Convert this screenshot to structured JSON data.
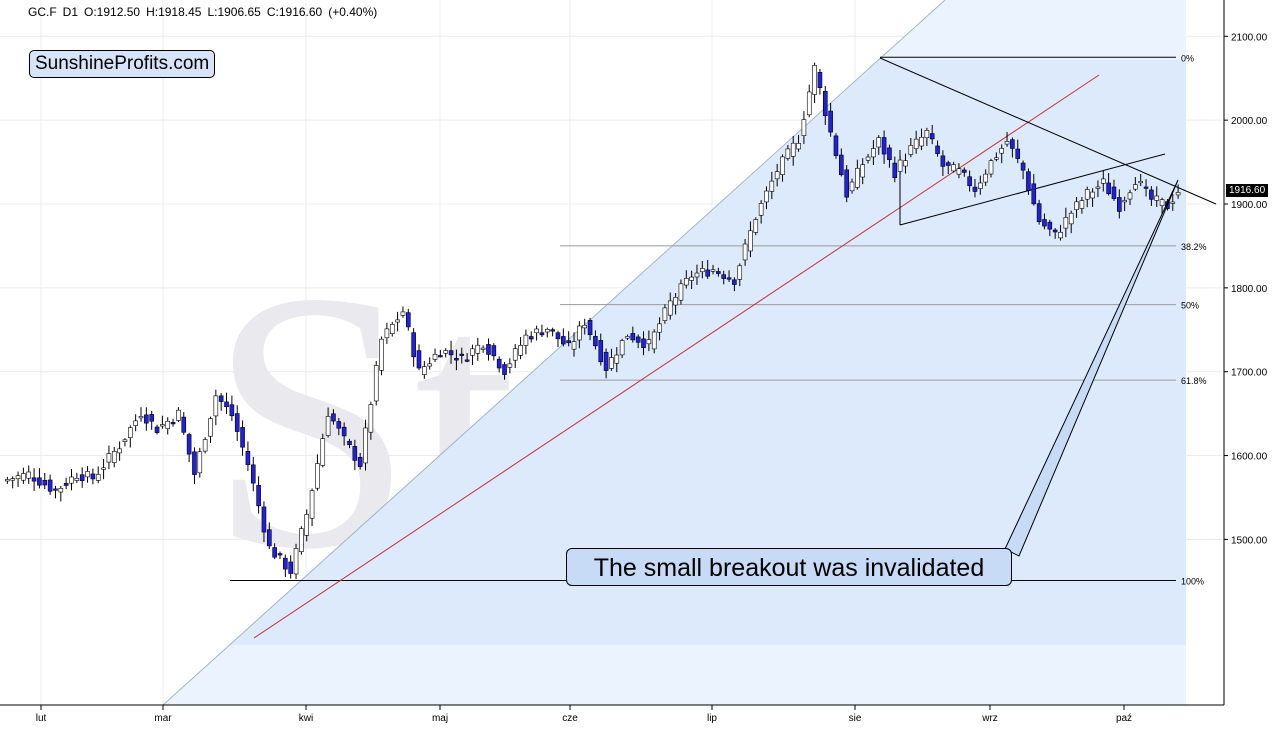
{
  "header": {
    "symbol": "GC.F",
    "interval": "D1",
    "open": "O:1912.50",
    "high": "H:1918.45",
    "low": "L:1906.65",
    "close": "C:1916.60",
    "change": "(+0.40%)"
  },
  "brand": "SunshineProfits.com",
  "watermark": "Stooq",
  "callout": "The small breakout was invalidated",
  "last_price": "1916.60",
  "colors": {
    "up_body": "#ffffff",
    "down_body": "#2020e0",
    "wick": "#000000",
    "trend_red": "#c4323a",
    "band_fill": "#ddeafc",
    "callout_fill": "#c7dbf6"
  },
  "chart_data": {
    "type": "candlestick",
    "ylim": [
      1420,
      2170
    ],
    "y_ticks": [
      "1500.00",
      "1600.00",
      "1700.00",
      "1800.00",
      "1900.00",
      "2000.00",
      "2100.00"
    ],
    "y_tick_values": [
      1500,
      1600,
      1700,
      1800,
      1900,
      2000,
      2100
    ],
    "x_labels": [
      "lut",
      "mar",
      "kwi",
      "maj",
      "cze",
      "lip",
      "sie",
      "wrz",
      "paź"
    ],
    "fib_levels": [
      {
        "label": "0%",
        "value": 2075
      },
      {
        "label": "38.2%",
        "value": 1850
      },
      {
        "label": "50%",
        "value": 1780
      },
      {
        "label": "61.8%",
        "value": 1690
      },
      {
        "label": "100%",
        "value": 1451
      }
    ],
    "candle_count": 183,
    "anchors": [
      [
        0,
        1570
      ],
      [
        5,
        1578
      ],
      [
        10,
        1558
      ],
      [
        14,
        1578
      ],
      [
        17,
        1573
      ],
      [
        22,
        1612
      ],
      [
        26,
        1652
      ],
      [
        29,
        1632
      ],
      [
        33,
        1650
      ],
      [
        36,
        1578
      ],
      [
        40,
        1672
      ],
      [
        43,
        1648
      ],
      [
        46,
        1590
      ],
      [
        50,
        1490
      ],
      [
        54,
        1462
      ],
      [
        57,
        1530
      ],
      [
        61,
        1652
      ],
      [
        64,
        1618
      ],
      [
        67,
        1590
      ],
      [
        71,
        1738
      ],
      [
        75,
        1772
      ],
      [
        78,
        1700
      ],
      [
        82,
        1726
      ],
      [
        86,
        1716
      ],
      [
        90,
        1735
      ],
      [
        94,
        1702
      ],
      [
        98,
        1742
      ],
      [
        102,
        1752
      ],
      [
        106,
        1728
      ],
      [
        109,
        1760
      ],
      [
        113,
        1705
      ],
      [
        117,
        1745
      ],
      [
        121,
        1732
      ],
      [
        125,
        1782
      ],
      [
        129,
        1815
      ],
      [
        133,
        1822
      ],
      [
        137,
        1810
      ],
      [
        141,
        1885
      ],
      [
        145,
        1940
      ],
      [
        149,
        1978
      ],
      [
        152,
        2062
      ],
      [
        155,
        1985
      ],
      [
        158,
        1912
      ],
      [
        161,
        1948
      ],
      [
        164,
        1975
      ],
      [
        167,
        1938
      ],
      [
        170,
        1966
      ],
      [
        173,
        1985
      ],
      [
        176,
        1945
      ],
      [
        179,
        1938
      ],
      [
        182,
        1918
      ],
      [
        185,
        1950
      ],
      [
        188,
        1975
      ],
      [
        191,
        1940
      ],
      [
        194,
        1880
      ],
      [
        197,
        1862
      ],
      [
        200,
        1890
      ],
      [
        203,
        1912
      ],
      [
        206,
        1925
      ],
      [
        209,
        1898
      ],
      [
        212,
        1930
      ],
      [
        215,
        1905
      ],
      [
        218,
        1898
      ],
      [
        220,
        1916
      ]
    ]
  }
}
